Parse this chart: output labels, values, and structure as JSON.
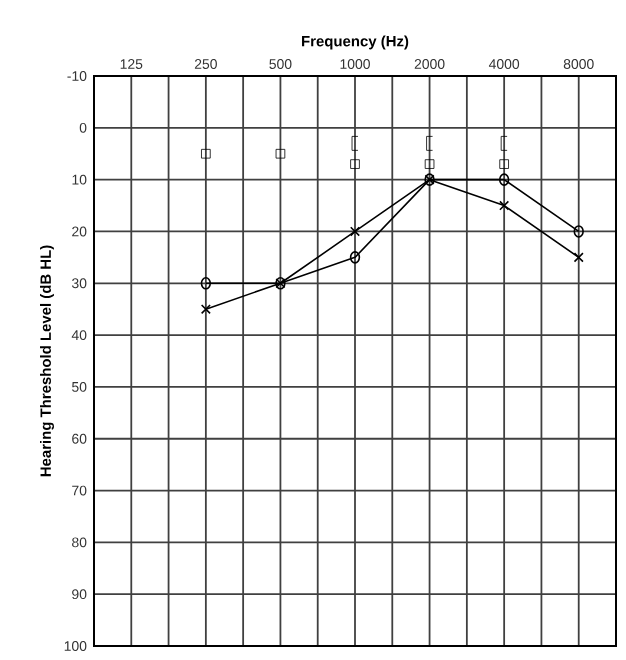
{
  "chart_data": {
    "type": "line",
    "xlabel": "Frequency (Hz)",
    "ylabel": "Hearing Threshold  Level (dB HL)",
    "categories": [
      "125",
      "250",
      "500",
      "1000",
      "2000",
      "4000",
      "8000"
    ],
    "ylim": [
      100,
      -10
    ],
    "yticks": [
      -10,
      0,
      10,
      20,
      30,
      40,
      50,
      60,
      70,
      80,
      90,
      100
    ],
    "grid": true,
    "series": [
      {
        "color": "#000000",
        "marker": "circle",
        "line_style": "solid",
        "values": [
          null,
          30,
          30,
          25,
          10,
          10,
          20
        ]
      },
      {
        "color": "#000000",
        "marker": "cross",
        "line_style": "solid",
        "values": [
          null,
          35,
          30,
          20,
          10,
          15,
          25
        ]
      },
      {
        "type": "scatter",
        "color": "#000000",
        "marker": "square",
        "values": [
          null,
          5,
          5,
          7,
          7,
          7,
          null
        ]
      },
      {
        "type": "scatter",
        "color": "#000000",
        "values": [
          null,
          null,
          null,
          3,
          3,
          3,
          null
        ]
      }
    ]
  }
}
